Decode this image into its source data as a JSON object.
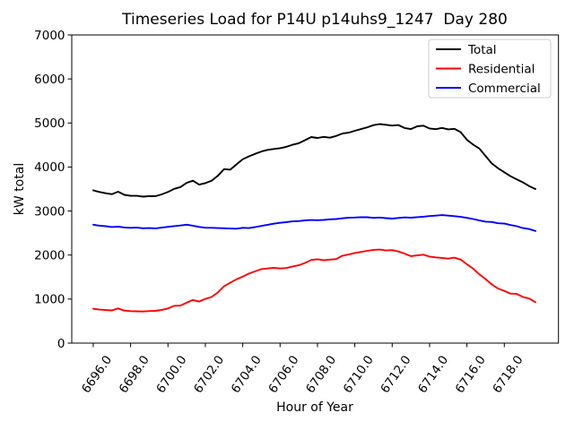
{
  "chart_data": {
    "type": "line",
    "title": "Timeseries Load for P14U p14uhs9_1247  Day 280",
    "xlabel": "Hour of Year",
    "ylabel": "kW total",
    "xlim": [
      6694.85,
      6720.9
    ],
    "ylim": [
      0,
      7000
    ],
    "x_ticks": [
      6696,
      6698,
      6700,
      6702,
      6704,
      6706,
      6708,
      6710,
      6712,
      6714,
      6716,
      6718
    ],
    "x_tick_labels": [
      "6696.0",
      "6698.0",
      "6700.0",
      "6702.0",
      "6704.0",
      "6706.0",
      "6708.0",
      "6710.0",
      "6712.0",
      "6714.0",
      "6716.0",
      "6718.0"
    ],
    "y_ticks": [
      0,
      1000,
      2000,
      3000,
      4000,
      5000,
      6000,
      7000
    ],
    "y_tick_labels": [
      "0",
      "1000",
      "2000",
      "3000",
      "4000",
      "5000",
      "6000",
      "7000"
    ],
    "grid": false,
    "x_start": 6696.0,
    "x_step": 0.33333,
    "legend": {
      "position": "upper right",
      "labels": [
        "Total",
        "Residential",
        "Commercial"
      ],
      "edge_color": "#cccccc",
      "face_color": "#ffffff"
    },
    "series": [
      {
        "name": "Total",
        "color": "#000000",
        "values": [
          3470,
          3432,
          3405,
          3382,
          3438,
          3368,
          3345,
          3345,
          3328,
          3340,
          3338,
          3378,
          3432,
          3505,
          3545,
          3640,
          3690,
          3600,
          3635,
          3690,
          3800,
          3952,
          3940,
          4060,
          4175,
          4242,
          4300,
          4352,
          4390,
          4410,
          4428,
          4458,
          4505,
          4540,
          4610,
          4680,
          4660,
          4685,
          4665,
          4705,
          4760,
          4780,
          4822,
          4862,
          4902,
          4950,
          4975,
          4958,
          4940,
          4952,
          4885,
          4862,
          4925,
          4938,
          4875,
          4860,
          4888,
          4855,
          4868,
          4790,
          4620,
          4508,
          4420,
          4250,
          4080,
          3972,
          3880,
          3790,
          3720,
          3650,
          3565,
          3500
        ]
      },
      {
        "name": "Residential",
        "color": "#ff0000",
        "values": [
          780,
          762,
          750,
          742,
          788,
          738,
          726,
          722,
          718,
          728,
          732,
          755,
          788,
          846,
          852,
          918,
          978,
          945,
          1005,
          1048,
          1150,
          1290,
          1372,
          1448,
          1510,
          1580,
          1630,
          1680,
          1695,
          1710,
          1695,
          1705,
          1740,
          1768,
          1822,
          1888,
          1905,
          1882,
          1896,
          1908,
          1985,
          2012,
          2048,
          2072,
          2095,
          2118,
          2125,
          2105,
          2112,
          2082,
          2032,
          1975,
          1992,
          2008,
          1965,
          1948,
          1935,
          1918,
          1942,
          1897,
          1790,
          1690,
          1560,
          1455,
          1330,
          1240,
          1185,
          1125,
          1118,
          1048,
          1012,
          930
        ]
      },
      {
        "name": "Commercial",
        "color": "#0000ff",
        "values": [
          2690,
          2668,
          2655,
          2638,
          2645,
          2628,
          2618,
          2622,
          2608,
          2612,
          2606,
          2622,
          2642,
          2658,
          2672,
          2690,
          2668,
          2640,
          2620,
          2618,
          2612,
          2608,
          2602,
          2598,
          2618,
          2612,
          2635,
          2662,
          2688,
          2712,
          2732,
          2748,
          2765,
          2772,
          2788,
          2795,
          2792,
          2798,
          2812,
          2818,
          2835,
          2848,
          2852,
          2862,
          2858,
          2845,
          2852,
          2838,
          2828,
          2842,
          2855,
          2848,
          2862,
          2872,
          2885,
          2895,
          2908,
          2896,
          2884,
          2868,
          2845,
          2818,
          2785,
          2760,
          2752,
          2722,
          2715,
          2682,
          2655,
          2612,
          2590,
          2548
        ]
      }
    ]
  }
}
